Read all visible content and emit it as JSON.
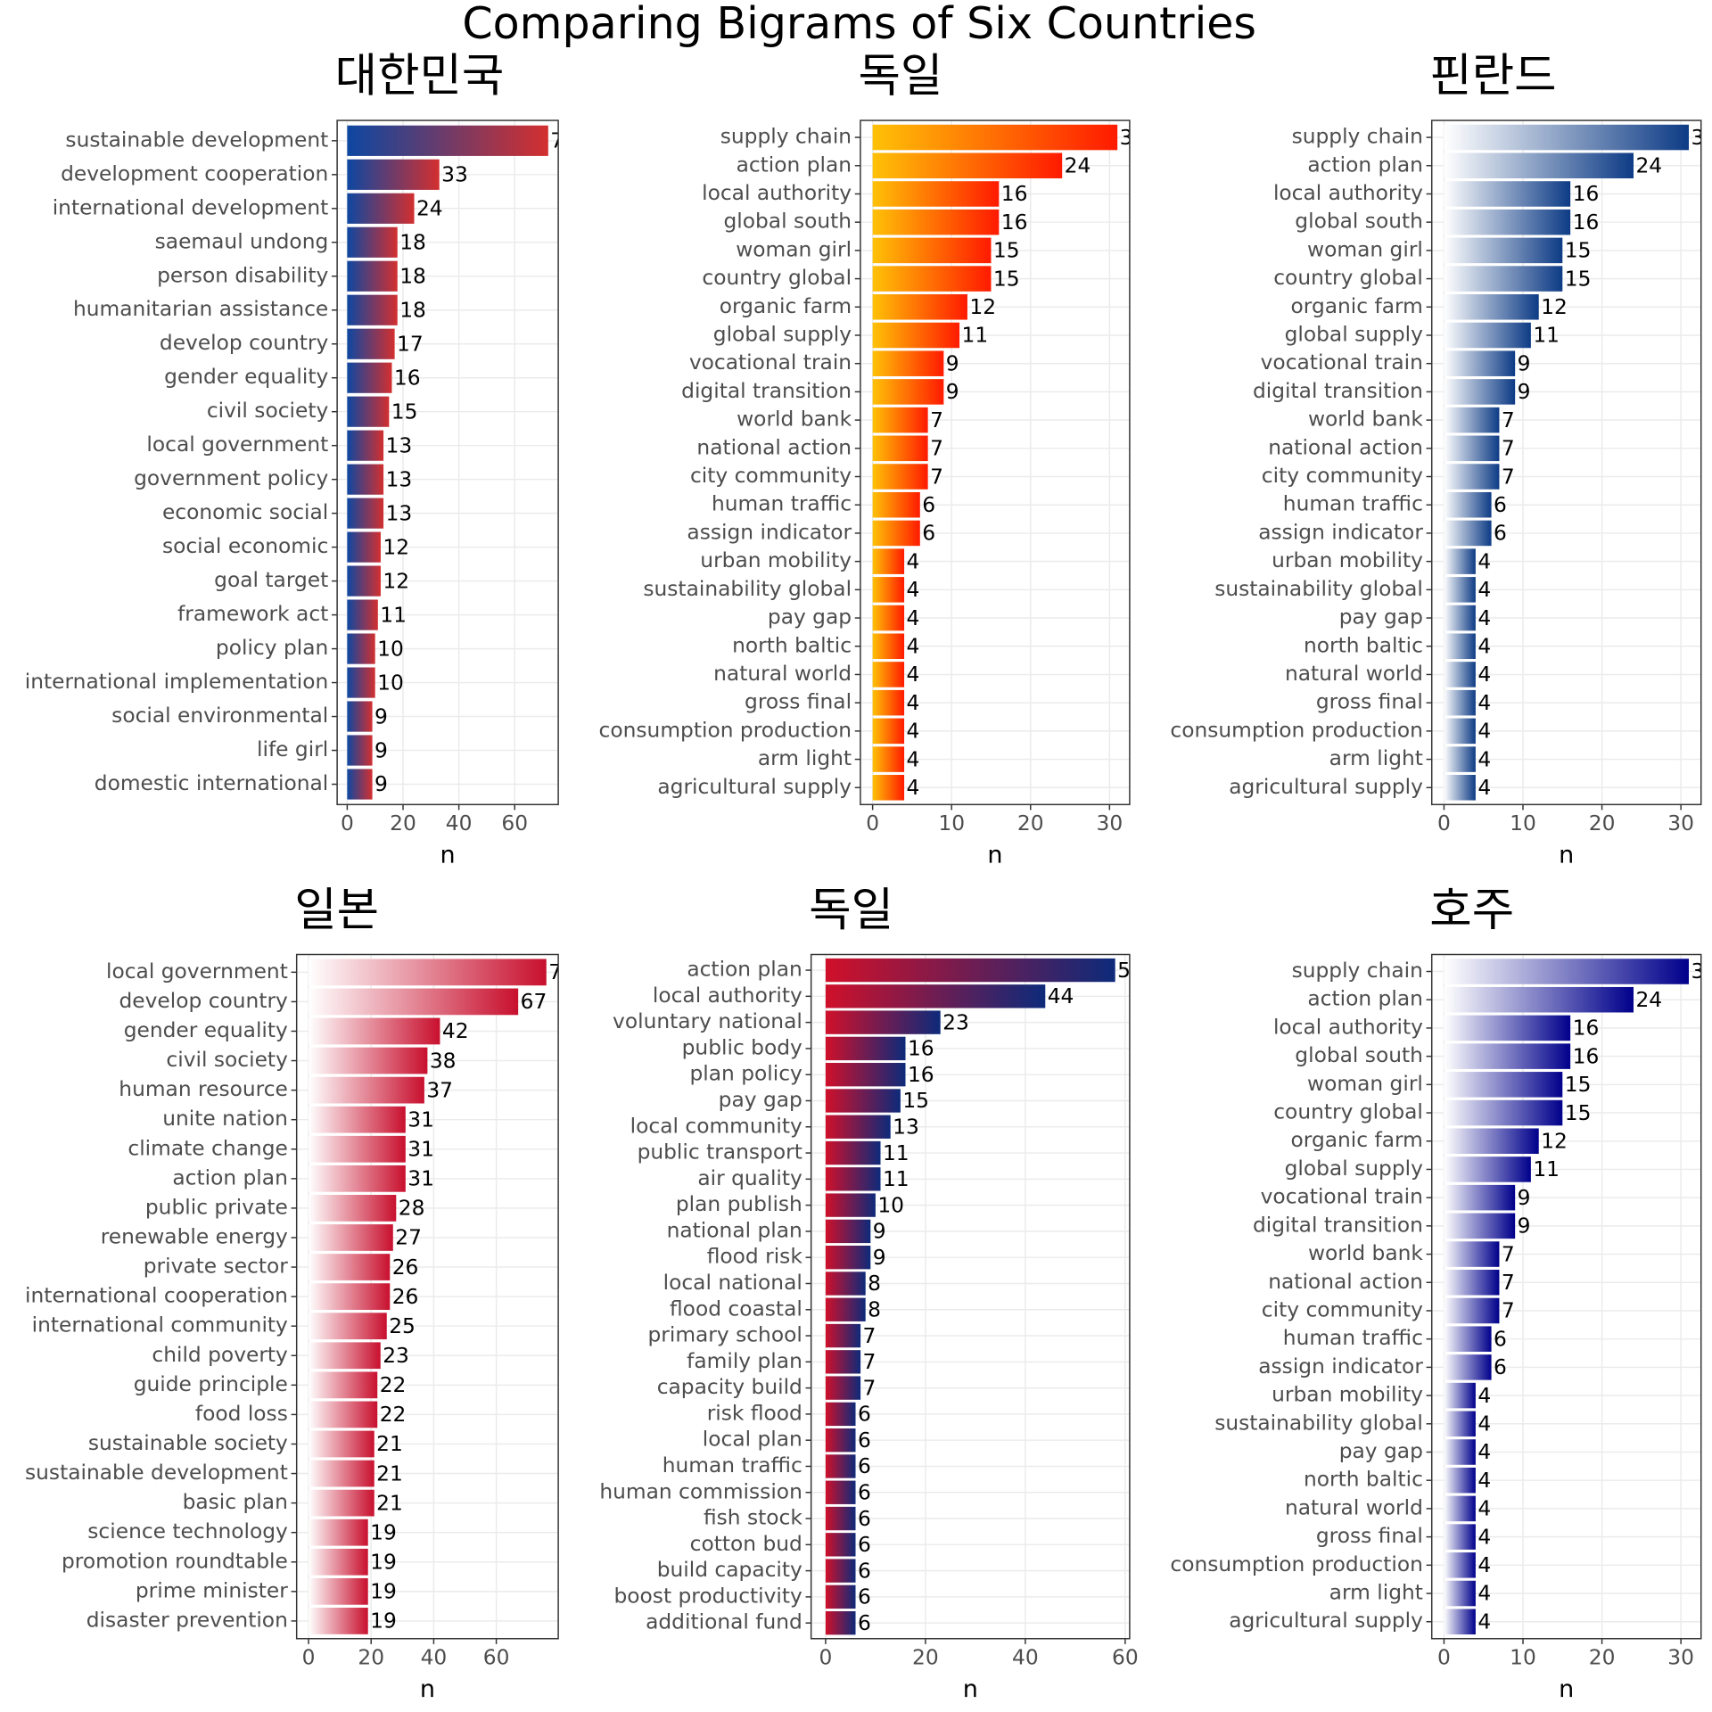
{
  "title": "Comparing Bigrams of Six Countries",
  "chart_data": [
    {
      "type": "bar",
      "orientation": "horizontal",
      "title": "대한민국",
      "x_label": "n",
      "gradient": [
        "#0d47a1",
        "#d32f2f"
      ],
      "categories": [
        "sustainable development",
        "development cooperation",
        "international development",
        "saemaul undong",
        "person disability",
        "humanitarian assistance",
        "develop country",
        "gender equality",
        "civil society",
        "local government",
        "government policy",
        "economic social",
        "social economic",
        "goal target",
        "framework act",
        "policy plan",
        "international implementation",
        "social environmental",
        "life girl",
        "domestic international"
      ],
      "values": [
        72,
        33,
        24,
        18,
        18,
        18,
        17,
        16,
        15,
        13,
        13,
        13,
        12,
        12,
        11,
        10,
        10,
        9,
        9,
        9
      ],
      "xlim": [
        -3.6,
        75.6
      ],
      "xticks": [
        0,
        20,
        40,
        60
      ],
      "grid": true
    },
    {
      "type": "bar",
      "orientation": "horizontal",
      "title": "독일",
      "x_label": "n",
      "gradient": [
        "#ffc107",
        "#ff1a00"
      ],
      "categories": [
        "supply chain",
        "action plan",
        "local authority",
        "global south",
        "woman girl",
        "country global",
        "organic farm",
        "global supply",
        "vocational train",
        "digital transition",
        "world bank",
        "national action",
        "city community",
        "human traffic",
        "assign indicator",
        "urban mobility",
        "sustainability global",
        "pay gap",
        "north baltic",
        "natural world",
        "gross final",
        "consumption production",
        "arm light",
        "agricultural supply"
      ],
      "values": [
        31,
        24,
        16,
        16,
        15,
        15,
        12,
        11,
        9,
        9,
        7,
        7,
        7,
        6,
        6,
        4,
        4,
        4,
        4,
        4,
        4,
        4,
        4,
        4
      ],
      "xlim": [
        -1.55,
        32.55
      ],
      "xticks": [
        0,
        10,
        20,
        30
      ],
      "grid": true
    },
    {
      "type": "bar",
      "orientation": "horizontal",
      "title": "핀란드",
      "x_label": "n",
      "gradient": [
        "#ffffff",
        "#0d3b85"
      ],
      "categories": [
        "supply chain",
        "action plan",
        "local authority",
        "global south",
        "woman girl",
        "country global",
        "organic farm",
        "global supply",
        "vocational train",
        "digital transition",
        "world bank",
        "national action",
        "city community",
        "human traffic",
        "assign indicator",
        "urban mobility",
        "sustainability global",
        "pay gap",
        "north baltic",
        "natural world",
        "gross final",
        "consumption production",
        "arm light",
        "agricultural supply"
      ],
      "values": [
        31,
        24,
        16,
        16,
        15,
        15,
        12,
        11,
        9,
        9,
        7,
        7,
        7,
        6,
        6,
        4,
        4,
        4,
        4,
        4,
        4,
        4,
        4,
        4
      ],
      "xlim": [
        -1.55,
        32.55
      ],
      "xticks": [
        0,
        10,
        20,
        30
      ],
      "grid": true
    },
    {
      "type": "bar",
      "orientation": "horizontal",
      "title": "일본",
      "x_label": "n",
      "gradient": [
        "#ffffff",
        "#c8102e"
      ],
      "categories": [
        "local government",
        "develop country",
        "gender equality",
        "civil society",
        "human resource",
        "unite nation",
        "climate change",
        "action plan",
        "public private",
        "renewable energy",
        "private sector",
        "international cooperation",
        "international community",
        "child poverty",
        "guide principle",
        "food loss",
        "sustainable society",
        "sustainable development",
        "basic plan",
        "science technology",
        "promotion roundtable",
        "prime minister",
        "disaster prevention"
      ],
      "values": [
        76,
        67,
        42,
        38,
        37,
        31,
        31,
        31,
        28,
        27,
        26,
        26,
        25,
        23,
        22,
        22,
        21,
        21,
        21,
        19,
        19,
        19,
        19
      ],
      "xlim": [
        -3.8,
        79.8
      ],
      "xticks": [
        0,
        20,
        40,
        60
      ],
      "grid": true
    },
    {
      "type": "bar",
      "orientation": "horizontal",
      "title": "독일",
      "x_label": "n",
      "gradient": [
        "#d0102a",
        "#0d2a7a"
      ],
      "categories": [
        "action plan",
        "local authority",
        "voluntary national",
        "public body",
        "plan policy",
        "pay gap",
        "local community",
        "public transport",
        "air quality",
        "plan publish",
        "national plan",
        "flood risk",
        "local national",
        "flood coastal",
        "primary school",
        "family plan",
        "capacity build",
        "risk flood",
        "local plan",
        "human traffic",
        "human commission",
        "fish stock",
        "cotton bud",
        "build capacity",
        "boost productivity",
        "additional fund"
      ],
      "values": [
        58,
        44,
        23,
        16,
        16,
        15,
        13,
        11,
        11,
        10,
        9,
        9,
        8,
        8,
        7,
        7,
        7,
        6,
        6,
        6,
        6,
        6,
        6,
        6,
        6,
        6
      ],
      "xlim": [
        -2.9,
        60.9
      ],
      "xticks": [
        0,
        20,
        40,
        60
      ],
      "grid": true
    },
    {
      "type": "bar",
      "orientation": "horizontal",
      "title": "호주",
      "x_label": "n",
      "gradient": [
        "#ffffff",
        "#00008b"
      ],
      "categories": [
        "supply chain",
        "action plan",
        "local authority",
        "global south",
        "woman girl",
        "country global",
        "organic farm",
        "global supply",
        "vocational train",
        "digital transition",
        "world bank",
        "national action",
        "city community",
        "human traffic",
        "assign indicator",
        "urban mobility",
        "sustainability global",
        "pay gap",
        "north baltic",
        "natural world",
        "gross final",
        "consumption production",
        "arm light",
        "agricultural supply"
      ],
      "values": [
        31,
        24,
        16,
        16,
        15,
        15,
        12,
        11,
        9,
        9,
        7,
        7,
        7,
        6,
        6,
        4,
        4,
        4,
        4,
        4,
        4,
        4,
        4,
        4
      ],
      "xlim": [
        -1.55,
        32.55
      ],
      "xticks": [
        0,
        10,
        20,
        30
      ],
      "grid": true
    }
  ]
}
